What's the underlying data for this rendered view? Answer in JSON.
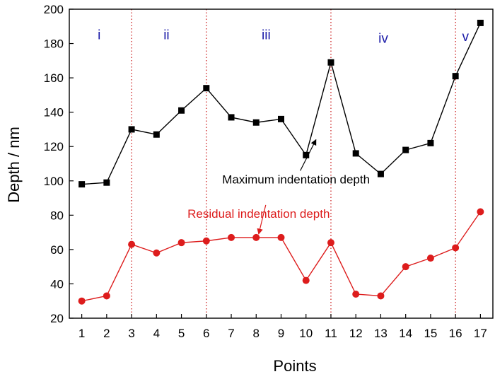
{
  "chart_data": {
    "type": "line",
    "title": "",
    "xlabel": "Points",
    "ylabel": "Depth / nm",
    "x": [
      1,
      2,
      3,
      4,
      5,
      6,
      7,
      8,
      9,
      10,
      11,
      12,
      13,
      14,
      15,
      16,
      17
    ],
    "xlim": [
      0.5,
      17.5
    ],
    "ylim": [
      20,
      200
    ],
    "yticks": [
      20,
      40,
      60,
      80,
      100,
      120,
      140,
      160,
      180,
      200
    ],
    "xticks": [
      1,
      2,
      3,
      4,
      5,
      6,
      7,
      8,
      9,
      10,
      11,
      12,
      13,
      14,
      15,
      16,
      17
    ],
    "grid": false,
    "series": [
      {
        "name": "Maximum indentation depth",
        "color": "#000000",
        "marker": "square",
        "values": [
          98,
          99,
          130,
          127,
          141,
          154,
          137,
          134,
          136,
          115,
          169,
          116,
          104,
          118,
          122,
          161,
          192
        ]
      },
      {
        "name": "Residual indentation depth",
        "color": "#dd1c1c",
        "marker": "circle",
        "values": [
          30,
          33,
          63,
          58,
          64,
          65,
          67,
          67,
          67,
          42,
          64,
          34,
          33,
          50,
          55,
          61,
          82
        ]
      }
    ],
    "region_boundaries": [
      3,
      6,
      11,
      16
    ],
    "region_labels": [
      {
        "text": "i",
        "x": 1.7,
        "y": 185
      },
      {
        "text": "ii",
        "x": 4.4,
        "y": 185
      },
      {
        "text": "iii",
        "x": 8.4,
        "y": 185
      },
      {
        "text": "iv",
        "x": 13.1,
        "y": 183
      },
      {
        "text": "v",
        "x": 16.4,
        "y": 184
      }
    ],
    "annotations": [
      {
        "text": "Maximum indentation depth",
        "x": 9.6,
        "y": 101,
        "color": "#000000",
        "arrow_to": [
          10.4,
          124
        ]
      },
      {
        "text": "Residual indentation depth",
        "x": 8.1,
        "y": 81,
        "color": "#dd1c1c",
        "arrow_to": [
          8.1,
          69
        ]
      }
    ],
    "region_label_color": "#1a1aa8",
    "boundary_color": "#cc2222"
  }
}
